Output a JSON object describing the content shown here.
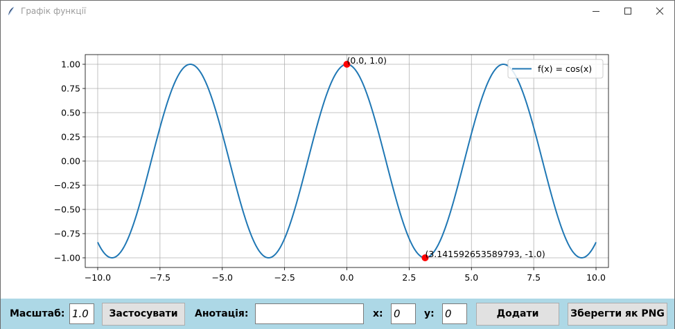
{
  "window": {
    "title": "Графік функції",
    "icon": "feather-icon",
    "controls": [
      "minimize-icon",
      "maximize-icon",
      "close-icon"
    ]
  },
  "plot": {
    "legend_label": "f(x) = cos(x)",
    "annotations": [
      {
        "text": "(0.0, 1.0)",
        "x": 0.0,
        "y": 1.0
      },
      {
        "text": "(3.141592653589793, -1.0)",
        "x": 3.141592653589793,
        "y": -1.0
      }
    ],
    "x_ticks": [
      "−10.0",
      "−7.5",
      "−5.0",
      "−2.5",
      "0.0",
      "2.5",
      "5.0",
      "7.5",
      "10.0"
    ],
    "y_ticks": [
      "1.00",
      "0.75",
      "0.50",
      "0.25",
      "0.00",
      "−0.25",
      "−0.50",
      "−0.75",
      "−1.00"
    ],
    "line_color": "#1f77b4",
    "point_color": "#ff0000"
  },
  "chart_data": {
    "type": "line",
    "series": [
      {
        "name": "f(x) = cos(x)",
        "function": "cos",
        "x_range": [
          -10,
          10
        ]
      }
    ],
    "xlim": [
      -10.5,
      10.5
    ],
    "ylim": [
      -1.1,
      1.1
    ],
    "x_ticks": [
      -10,
      -7.5,
      -5,
      -2.5,
      0,
      2.5,
      5,
      7.5,
      10
    ],
    "y_ticks": [
      1.0,
      0.75,
      0.5,
      0.25,
      0.0,
      -0.25,
      -0.5,
      -0.75,
      -1.0
    ],
    "points": [
      {
        "x": 0.0,
        "y": 1.0
      },
      {
        "x": 3.141592653589793,
        "y": -1.0
      }
    ],
    "grid": true,
    "legend": "top-right"
  },
  "toolbar": {
    "scale_label": "Масштаб:",
    "scale_value": "1.0",
    "apply_label": "Застосувати",
    "annotation_label": "Анотація:",
    "annotation_value": "",
    "x_label": "x:",
    "x_value": "0",
    "y_label": "y:",
    "y_value": "0",
    "add_label": "Додати",
    "save_label": "Зберегти як PNG",
    "background": "#add8e6"
  }
}
